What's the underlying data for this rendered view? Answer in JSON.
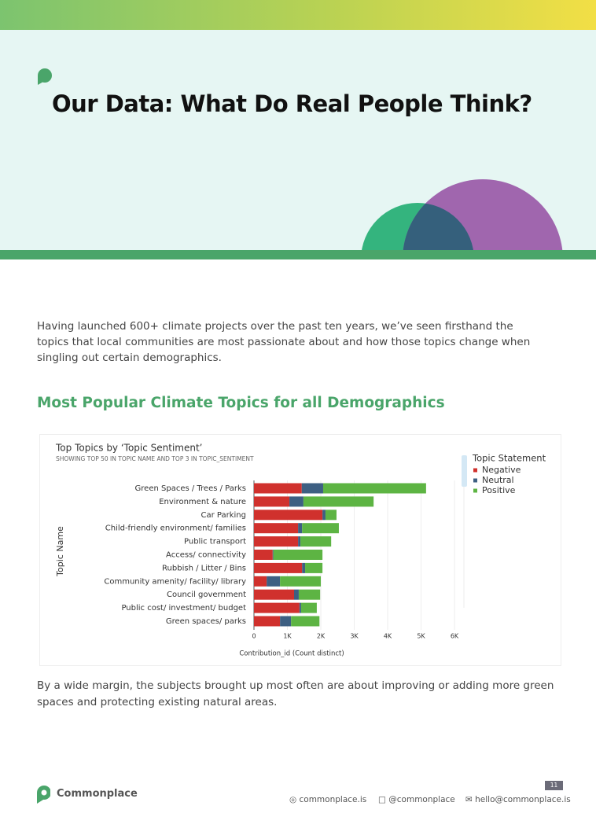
{
  "header": {
    "title": "Our Data: What Do Real People Think?"
  },
  "intro": "Having launched 600+ climate projects over the past ten years, we’ve seen firsthand the topics that local communities are most passionate about and how those topics change when singling out certain demographics.",
  "section_heading": "Most Popular Climate Topics for all Demographics",
  "chart_data": {
    "type": "bar",
    "orientation": "horizontal",
    "stacked": true,
    "title": "Top Topics by ‘Topic Sentiment’",
    "subtitle": "SHOWING TOP 50 IN TOPIC NAME AND TOP 3 IN TOPIC_SENTIMENT",
    "y_label": "Topic Name",
    "x_label": "Contribution_id (Count distinct)",
    "legend_title": "Topic Statement",
    "legend_position": "top-right",
    "grid": true,
    "categories": [
      "Green Spaces / Trees / Parks",
      "Environment & nature",
      "Car Parking",
      "Child-friendly environment/ families",
      "Public transport",
      "Access/ connectivity",
      "Rubbish / Litter / Bins",
      "Community amenity/ facility/ library",
      "Council government",
      "Public cost/ investment/ budget",
      "Green spaces/ parks"
    ],
    "series": [
      {
        "name": "Negative",
        "color": "#d0312d",
        "values": [
          1430,
          1060,
          2050,
          1320,
          1320,
          560,
          1440,
          380,
          1200,
          1360,
          780
        ]
      },
      {
        "name": "Neutral",
        "color": "#3d5f82",
        "values": [
          640,
          420,
          90,
          120,
          70,
          20,
          90,
          400,
          140,
          50,
          330
        ]
      },
      {
        "name": "Positive",
        "color": "#5db443",
        "values": [
          3080,
          2100,
          330,
          1100,
          920,
          1470,
          520,
          1220,
          640,
          470,
          850
        ]
      }
    ],
    "xlim": [
      0,
      6000
    ],
    "xticks": [
      0,
      {
        "value": 1000,
        "label": "1K"
      },
      {
        "value": 2000,
        "label": "2K"
      },
      {
        "value": 3000,
        "label": "3K"
      },
      {
        "value": 4000,
        "label": "4K"
      },
      {
        "value": 5000,
        "label": "5K"
      },
      {
        "value": 6000,
        "label": "6K"
      }
    ]
  },
  "caption": "By a wide margin, the subjects brought up most often are about improving or adding more green spaces and protecting existing natural areas.",
  "footer": {
    "brand": "Commonplace",
    "page_number": "11",
    "website": "commonplace.is",
    "social": "@commonplace",
    "email": "hello@commonplace.is"
  }
}
